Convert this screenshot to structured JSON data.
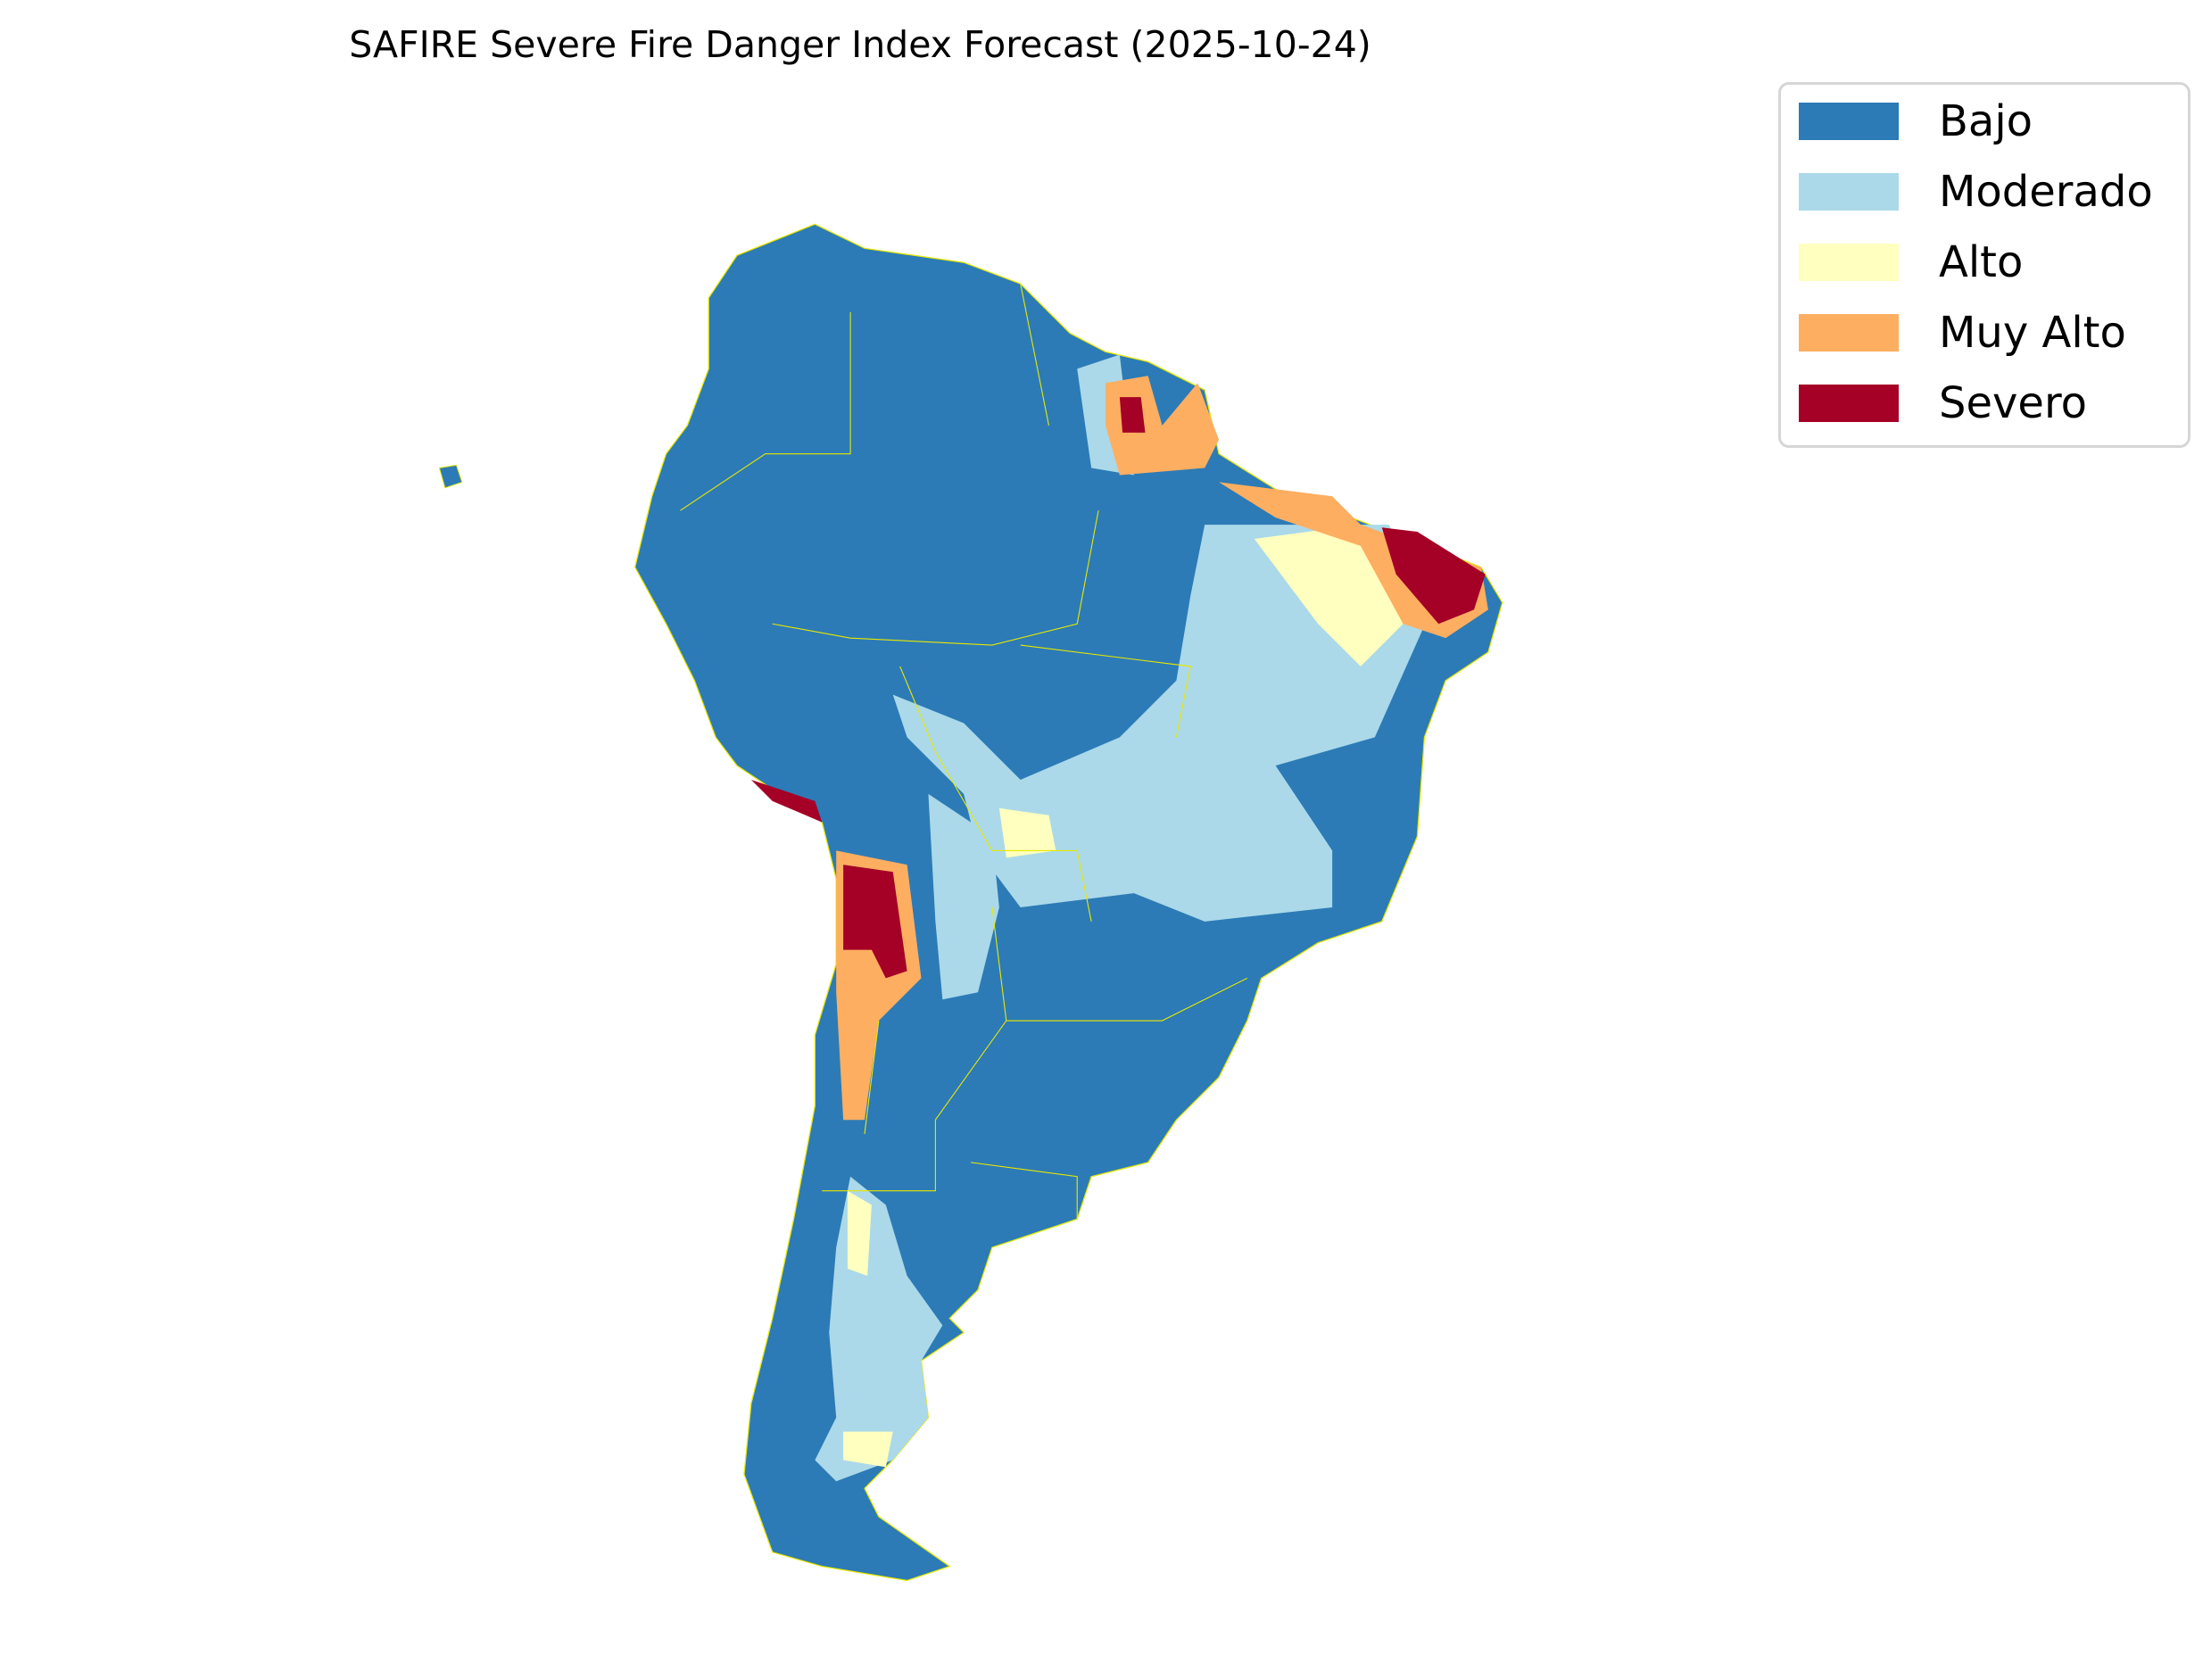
{
  "title": "SAFIRE Severe Fire Danger Index Forecast (2025-10-24)",
  "legend": {
    "placement": "upper-right, outside map",
    "items": [
      {
        "label": "Bajo",
        "color": "#2c7bb6"
      },
      {
        "label": "Moderado",
        "color": "#abd9e9"
      },
      {
        "label": "Alto",
        "color": "#ffffbf"
      },
      {
        "label": "Muy Alto",
        "color": "#fdae61"
      },
      {
        "label": "Severo",
        "color": "#a50026"
      }
    ]
  },
  "map": {
    "region": "South America",
    "boundary_color": "#e8e800",
    "dominant_category": "Bajo",
    "notable_areas": [
      {
        "category": "Severo",
        "area": "Northeast Brazil coast and Amapá, central Andes (Bolivia/Chile/Argentina border)"
      },
      {
        "category": "Muy Alto",
        "area": "Northern Brazil coast, Amapá, Andes foothills"
      },
      {
        "category": "Moderado",
        "area": "Central Brazil, eastern Bolivia, Patagonia"
      },
      {
        "category": "Alto",
        "area": "Scattered edges around Moderado areas, Patagonia"
      }
    ]
  }
}
